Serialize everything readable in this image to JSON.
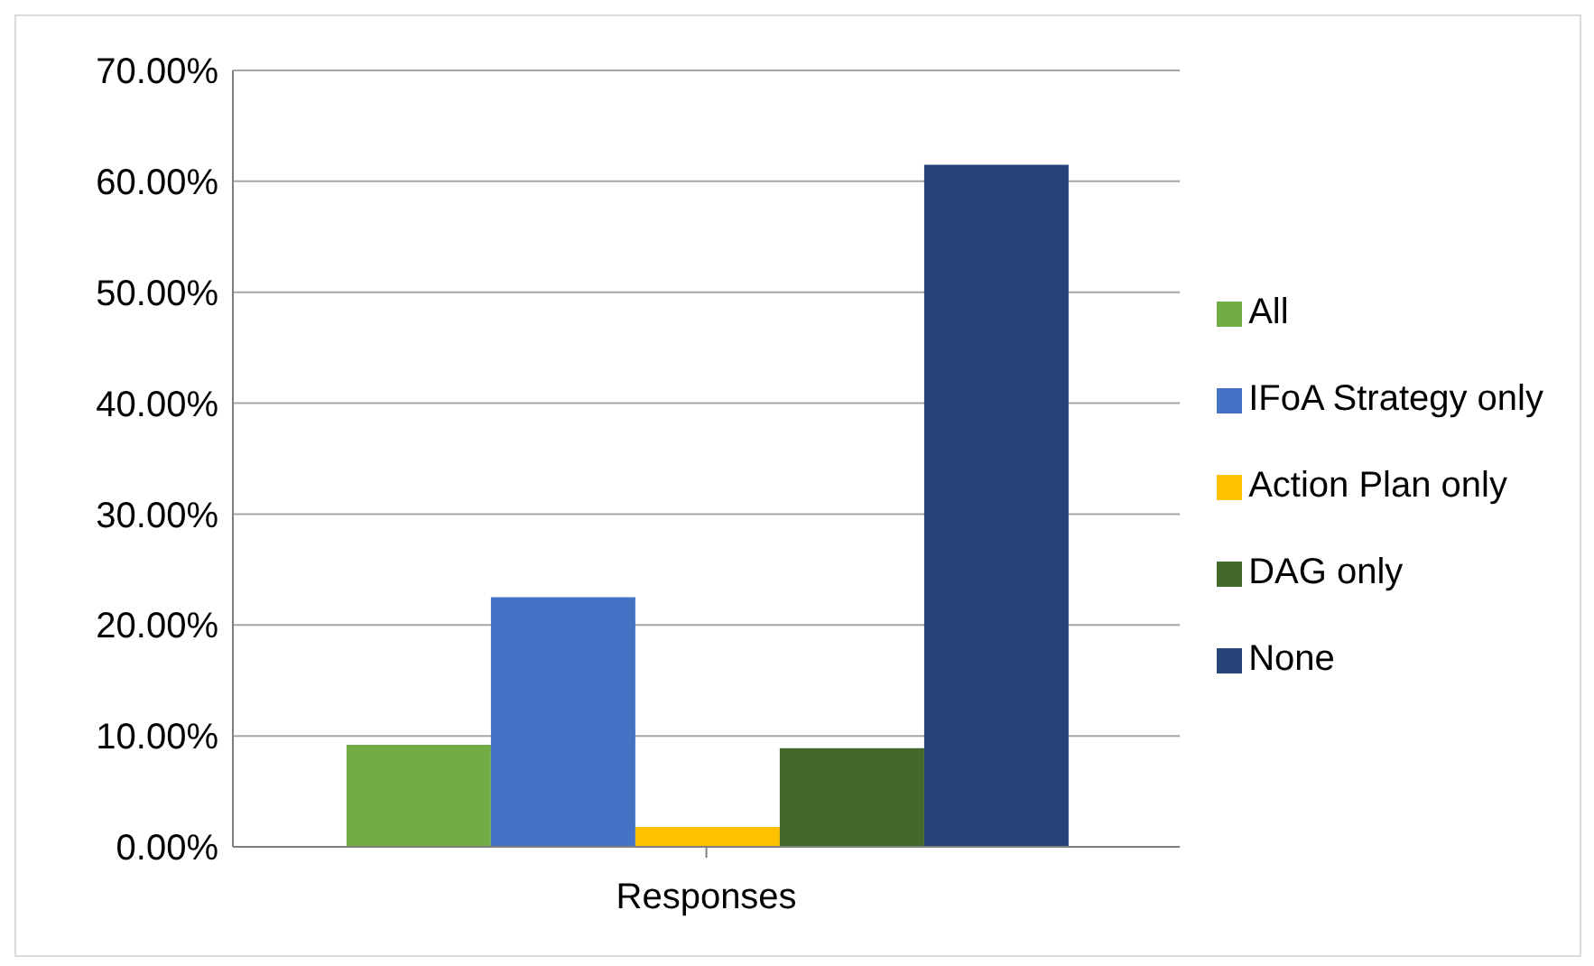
{
  "chart_data": {
    "type": "bar",
    "categories": [
      "Responses"
    ],
    "series": [
      {
        "name": "All",
        "color": "#70ad47",
        "values": [
          9.2
        ]
      },
      {
        "name": "IFoA Strategy only",
        "color": "#4472c4",
        "values": [
          22.5
        ]
      },
      {
        "name": "Action Plan only",
        "color": "#ffc000",
        "values": [
          1.8
        ]
      },
      {
        "name": "DAG only",
        "color": "#43682b",
        "values": [
          8.9
        ]
      },
      {
        "name": "None",
        "color": "#264478",
        "values": [
          61.5
        ]
      }
    ],
    "ylim": [
      0,
      70
    ],
    "yticks": [
      {
        "value": 0,
        "label": "0.00%"
      },
      {
        "value": 10,
        "label": "10.00%"
      },
      {
        "value": 20,
        "label": "20.00%"
      },
      {
        "value": 30,
        "label": "30.00%"
      },
      {
        "value": 40,
        "label": "40.00%"
      },
      {
        "value": 50,
        "label": "50.00%"
      },
      {
        "value": 60,
        "label": "60.00%"
      },
      {
        "value": 70,
        "label": "70.00%"
      }
    ],
    "grid": "y",
    "legend": "right"
  }
}
